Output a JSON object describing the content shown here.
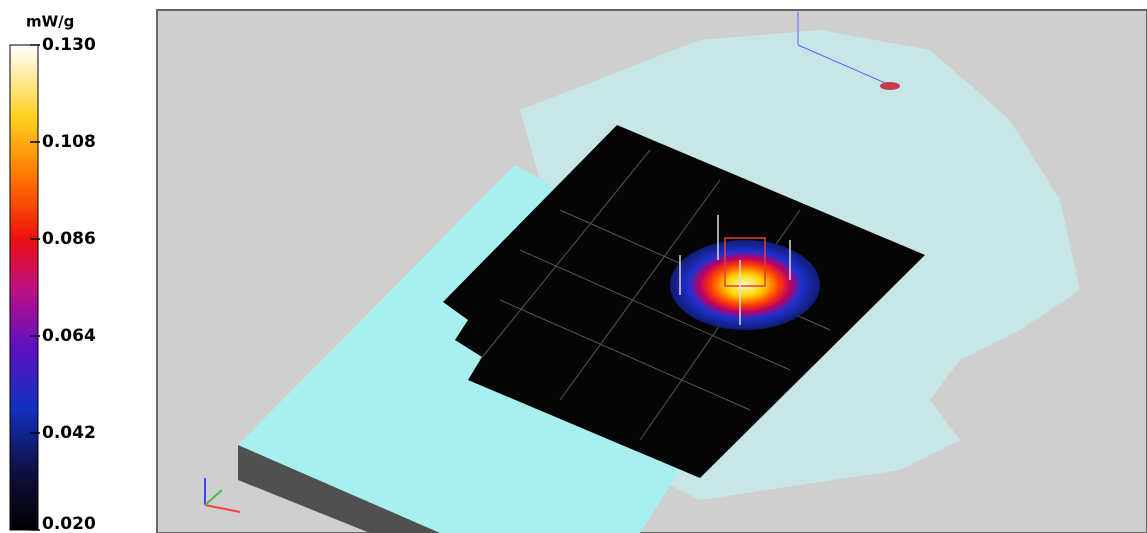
{
  "colorbar": {
    "unit": "mW/g",
    "range": [
      0.02,
      0.13
    ],
    "ticks": [
      {
        "value": 0.13,
        "label": "0.130"
      },
      {
        "value": 0.108,
        "label": "0.108"
      },
      {
        "value": 0.086,
        "label": "0.086"
      },
      {
        "value": 0.064,
        "label": "0.064"
      },
      {
        "value": 0.042,
        "label": "0.042"
      },
      {
        "value": 0.02,
        "label": "0.020"
      }
    ]
  }
}
